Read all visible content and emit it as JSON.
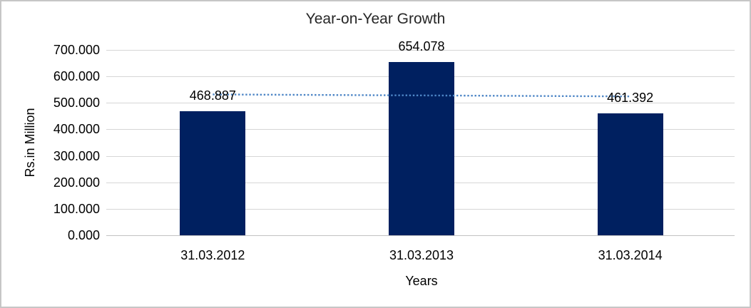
{
  "frame": {
    "background": "#ffffff",
    "border_color": "#c6c6c6"
  },
  "chart_data": {
    "type": "bar",
    "title": "Year-on-Year Growth",
    "xlabel": "Years",
    "ylabel": "Rs.in Million",
    "categories": [
      "31.03.2012",
      "31.03.2013",
      "31.03.2014"
    ],
    "values": [
      468.887,
      654.078,
      461.392
    ],
    "data_labels": [
      "468.887",
      "654.078",
      "461.392"
    ],
    "y_tick_labels": [
      "0.000",
      "100.000",
      "200.000",
      "300.000",
      "400.000",
      "500.000",
      "600.000",
      "700.000"
    ],
    "ylim": [
      0,
      700
    ],
    "grid": true,
    "legend": "none",
    "bar_color": "#002060",
    "gridline_color": "#d6d6d6",
    "axis_line_color": "#c2c2c2",
    "text_color": "#000000",
    "title_color": "#262626",
    "trendline": {
      "type": "linear",
      "style": "dotted",
      "color": "#4e86c6"
    }
  }
}
